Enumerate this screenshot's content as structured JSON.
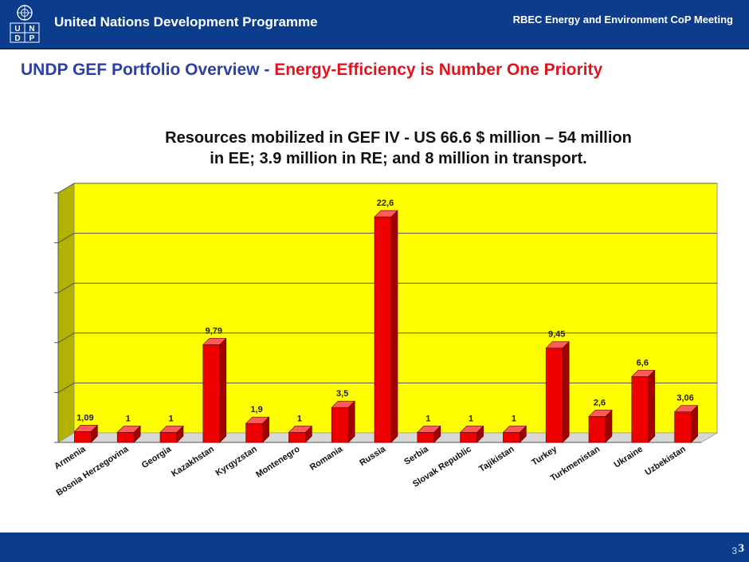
{
  "header": {
    "organization": "United Nations Development Programme",
    "meeting": "RBEC Energy and Environment CoP Meeting",
    "logo_letters": [
      "U",
      "N",
      "D",
      "P"
    ]
  },
  "slide": {
    "title_part1": "UNDP GEF Portfolio Overview -",
    "title_part2": "Energy-Efficiency",
    "title_part3": " is Number One Priority",
    "subtitle_line1": "Resources mobilized in GEF IV  - US 66.6 $ million – 54 million",
    "subtitle_line2": "in EE; 3.9 million in RE; and 8 million in transport."
  },
  "footer": {
    "page_small": "3",
    "page": "3"
  },
  "colors": {
    "brand_blue": "#0b3d8c",
    "bar_fill": "#ee0000",
    "plot_background": "#ffff00"
  },
  "chart_data": {
    "type": "bar",
    "style": "3d",
    "categories": [
      "Armenia",
      "Bosnia Herzegovina",
      "Georgia",
      "Kazakhstan",
      "Kyrgyzstan",
      "Montenegro",
      "Romania",
      "Russia",
      "Serbia",
      "Slovak Republic",
      "Tajikistan",
      "Turkey",
      "Turkmenistan",
      "Ukraine",
      "Uzbekistan"
    ],
    "values": [
      1.09,
      1,
      1,
      9.79,
      1.9,
      1,
      3.5,
      22.6,
      1,
      1,
      1,
      9.45,
      2.6,
      6.6,
      3.06
    ],
    "data_labels": [
      "1,09",
      "1",
      "1",
      "9,79",
      "1,9",
      "1",
      "3,5",
      "22,6",
      "1",
      "1",
      "1",
      "9,45",
      "2,6",
      "6,6",
      "3,06"
    ],
    "ylim": [
      0,
      25
    ],
    "y_tick_step": 5,
    "grid": true,
    "legend": "none"
  }
}
